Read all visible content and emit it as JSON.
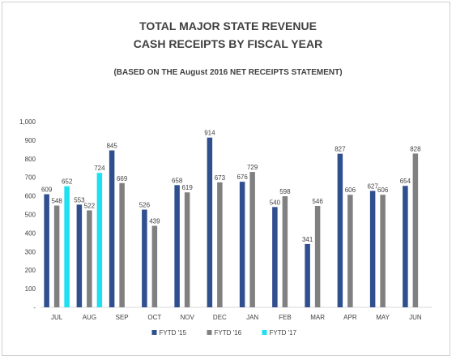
{
  "chart_data": {
    "type": "bar",
    "title_line1": "TOTAL MAJOR STATE REVENUE",
    "title_line2": "CASH RECEIPTS BY FISCAL YEAR",
    "subtitle": "(BASED ON THE August 2016 NET RECEIPTS STATEMENT)",
    "categories": [
      "JUL",
      "AUG",
      "SEP",
      "OCT",
      "NOV",
      "DEC",
      "JAN",
      "FEB",
      "MAR",
      "APR",
      "MAY",
      "JUN"
    ],
    "ylim": [
      0,
      1000
    ],
    "yticks": [
      0,
      100,
      200,
      300,
      400,
      500,
      600,
      700,
      800,
      900,
      1000
    ],
    "ytick_labels": [
      "-",
      "100",
      "200",
      "300",
      "400",
      "500",
      "600",
      "700",
      "800",
      "900",
      "1,000"
    ],
    "grid": false,
    "legend_position": "bottom",
    "series": [
      {
        "name": "FYTD '15",
        "color": "#2f4f8f",
        "values": [
          609,
          553,
          845,
          526,
          658,
          914,
          676,
          540,
          341,
          827,
          627,
          654
        ]
      },
      {
        "name": "FYTD '16",
        "color": "#808080",
        "values": [
          548,
          522,
          669,
          439,
          619,
          673,
          729,
          598,
          546,
          606,
          606,
          828
        ]
      },
      {
        "name": "FYTD '17",
        "color": "#1fe0f0",
        "values": [
          652,
          724,
          null,
          null,
          null,
          null,
          null,
          null,
          null,
          null,
          null,
          null
        ]
      }
    ]
  }
}
